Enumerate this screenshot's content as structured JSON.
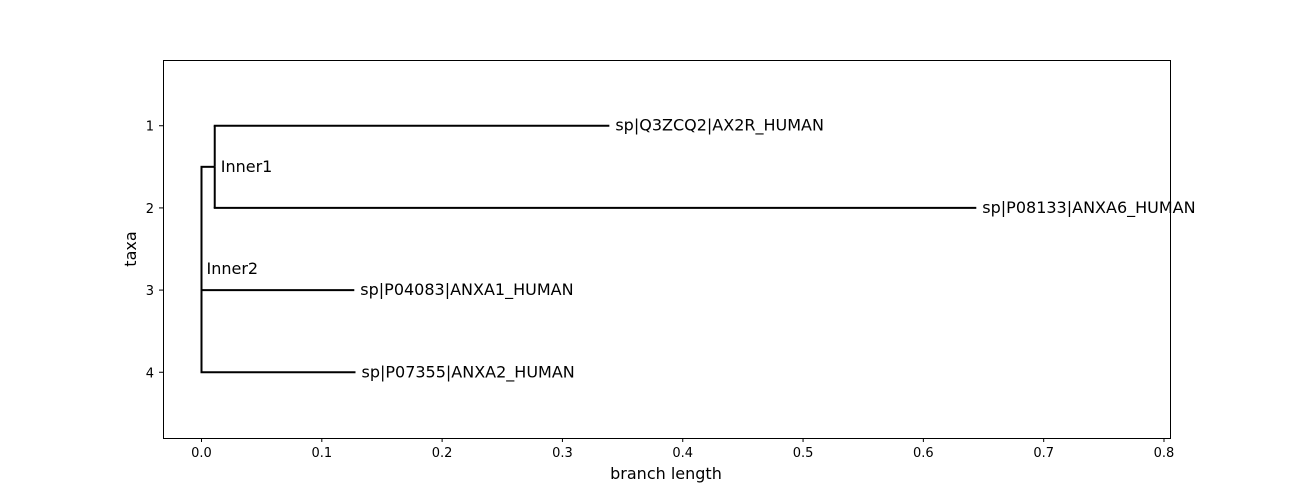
{
  "chart_data": {
    "type": "phylogenetic-tree",
    "xlabel": "branch length",
    "ylabel": "taxa",
    "xlim": [
      -0.032,
      0.805
    ],
    "ylim": [
      4.8,
      0.2
    ],
    "xticks": [
      0.0,
      0.1,
      0.2,
      0.3,
      0.4,
      0.5,
      0.6,
      0.7,
      0.8
    ],
    "xtick_labels": [
      "0.0",
      "0.1",
      "0.2",
      "0.3",
      "0.4",
      "0.5",
      "0.6",
      "0.7",
      "0.8"
    ],
    "yticks": [
      1,
      2,
      3,
      4
    ],
    "ytick_labels": [
      "1",
      "2",
      "3",
      "4"
    ],
    "grid": false,
    "line_color": "#000000",
    "nodes": [
      {
        "id": "root",
        "label": "",
        "x": 0.0,
        "y": 2.5
      },
      {
        "id": "inner1",
        "label": "Inner1",
        "x": 0.011,
        "y": 1.5
      },
      {
        "id": "inner2",
        "label": "Inner2",
        "x": 0.0,
        "y": 3.0
      },
      {
        "id": "leaf1",
        "label": "sp|Q3ZCQ2|AX2R_HUMAN",
        "x": 0.339,
        "y": 1
      },
      {
        "id": "leaf2",
        "label": "sp|P08133|ANXA6_HUMAN",
        "x": 0.644,
        "y": 2
      },
      {
        "id": "leaf3",
        "label": "sp|P04083|ANXA1_HUMAN",
        "x": 0.127,
        "y": 3
      },
      {
        "id": "leaf4",
        "label": "sp|P07355|ANXA2_HUMAN",
        "x": 0.128,
        "y": 4
      }
    ],
    "edges": [
      {
        "parent": "root",
        "child": "inner1"
      },
      {
        "parent": "root",
        "child": "inner2"
      },
      {
        "parent": "inner1",
        "child": "leaf1"
      },
      {
        "parent": "inner1",
        "child": "leaf2"
      },
      {
        "parent": "inner2",
        "child": "leaf3"
      },
      {
        "parent": "inner2",
        "child": "leaf4"
      }
    ]
  }
}
